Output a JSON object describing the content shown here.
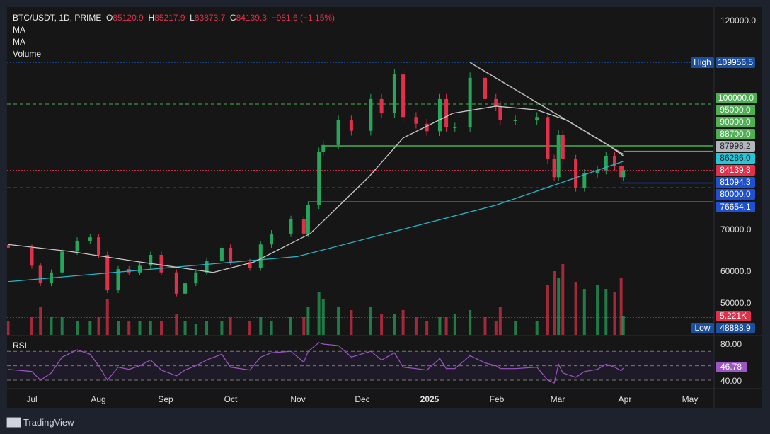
{
  "header": {
    "symbol": "BTC/USDT, 1D, PRIME",
    "o_label": "O",
    "open": "85120.9",
    "h_label": "H",
    "high": "85217.9",
    "l_label": "L",
    "low": "83873.7",
    "c_label": "C",
    "close": "84139.3",
    "change": "−981.6 (−1.15%)",
    "indicators": [
      "MA",
      "MA",
      "Volume"
    ]
  },
  "price_axis": {
    "ticks": [
      "120000.0",
      "70000.0",
      "60000.0",
      "50000.0"
    ],
    "high_label": "High",
    "high_value": "109956.5",
    "low_label": "Low",
    "low_value": "48888.9",
    "tags": [
      {
        "value": "100000.0",
        "color": "#4caf50"
      },
      {
        "value": "95000.0",
        "color": "#4caf50"
      },
      {
        "value": "90000.0",
        "color": "#4caf50"
      },
      {
        "value": "88700.0",
        "color": "#4caf50"
      },
      {
        "value": "87998.2",
        "color": "#b2b5be"
      },
      {
        "value": "86286.0",
        "color": "#26c6da"
      },
      {
        "value": "84139.3",
        "color": "#e0304a"
      },
      {
        "value": "81094.3",
        "color": "#1e50d0"
      },
      {
        "value": "80000.0",
        "color": "#1e50d0"
      },
      {
        "value": "76654.1",
        "color": "#1e50d0"
      }
    ],
    "volume_tag": "5.221K"
  },
  "rsi": {
    "title": "RSI",
    "ticks": [
      "80.00",
      "40.00"
    ],
    "value": "46.78",
    "color": "#9c57c4"
  },
  "time_axis": [
    "Jul",
    "Aug",
    "Sep",
    "Oct",
    "Nov",
    "Dec",
    "2025",
    "Feb",
    "Mar",
    "Apr",
    "May"
  ],
  "footer": {
    "brand": "TradingView",
    "logo": "17"
  },
  "colors": {
    "up": "#26a65b",
    "down": "#e0304a",
    "ma_short": "#c9c9c9",
    "ma_long": "#26b5c8",
    "background": "#161616",
    "frame": "#1e222d"
  },
  "chart_data": {
    "type": "candlestick",
    "symbol": "BTC/USDT",
    "interval": "1D",
    "ylim": [
      48000,
      122000
    ],
    "dates": [
      "2024-06-20",
      "2024-07-01",
      "2024-07-05",
      "2024-07-10",
      "2024-07-15",
      "2024-07-22",
      "2024-07-28",
      "2024-08-01",
      "2024-08-05",
      "2024-08-10",
      "2024-08-15",
      "2024-08-20",
      "2024-08-25",
      "2024-08-30",
      "2024-09-06",
      "2024-09-10",
      "2024-09-15",
      "2024-09-20",
      "2024-09-27",
      "2024-10-01",
      "2024-10-10",
      "2024-10-15",
      "2024-10-20",
      "2024-10-29",
      "2024-11-04",
      "2024-11-06",
      "2024-11-11",
      "2024-11-13",
      "2024-11-20",
      "2024-11-26",
      "2024-12-05",
      "2024-12-10",
      "2024-12-16",
      "2024-12-20",
      "2024-12-26",
      "2024-12-31",
      "2025-01-06",
      "2025-01-09",
      "2025-01-13",
      "2025-01-20",
      "2025-01-27",
      "2025-02-01",
      "2025-02-03",
      "2025-02-10",
      "2025-02-20",
      "2025-02-25",
      "2025-02-28",
      "2025-03-02",
      "2025-03-04",
      "2025-03-10",
      "2025-03-14",
      "2025-03-20",
      "2025-03-24",
      "2025-03-28",
      "2025-03-31",
      "2025-04-01"
    ],
    "close": [
      65600,
      61300,
      57100,
      59700,
      64700,
      67300,
      68100,
      63900,
      55400,
      60500,
      59700,
      61300,
      63900,
      59700,
      54600,
      57100,
      59700,
      62500,
      65600,
      62200,
      60800,
      66400,
      69000,
      72400,
      69000,
      75800,
      88500,
      90200,
      96100,
      93600,
      101200,
      97800,
      107100,
      96900,
      95300,
      93500,
      101200,
      94400,
      94400,
      106300,
      101200,
      99500,
      96100,
      96100,
      96900,
      86800,
      82500,
      92700,
      86800,
      80000,
      83400,
      84200,
      87600,
      85100,
      82500,
      84139.3
    ],
    "volume_k": [
      4,
      5,
      8,
      5,
      5,
      4,
      4,
      5,
      10,
      4,
      4,
      4,
      4,
      4,
      6,
      4,
      3,
      4,
      4,
      5,
      4,
      5,
      4,
      5,
      5,
      8,
      12,
      10,
      8,
      7,
      8,
      6,
      6,
      7,
      5,
      4,
      5,
      5,
      6,
      7,
      5,
      4,
      8,
      4,
      4,
      14,
      18,
      16,
      20,
      15,
      13,
      14,
      13,
      12,
      16,
      5.221
    ],
    "rsi": [
      45,
      42,
      30,
      40,
      62,
      72,
      66,
      50,
      30,
      48,
      45,
      50,
      58,
      44,
      36,
      44,
      50,
      58,
      66,
      48,
      44,
      62,
      68,
      70,
      55,
      70,
      82,
      80,
      78,
      62,
      70,
      58,
      68,
      48,
      46,
      44,
      60,
      46,
      46,
      64,
      54,
      50,
      46,
      46,
      48,
      30,
      26,
      52,
      40,
      34,
      42,
      45,
      52,
      48,
      43,
      46.78
    ],
    "rsi_levels": [
      70,
      50,
      30
    ],
    "ma_short": {
      "dates": [
        "2024-06-20",
        "2024-07-19",
        "2024-08-20",
        "2024-09-23",
        "2024-10-12",
        "2024-11-07",
        "2024-12-04",
        "2024-12-20",
        "2025-01-12",
        "2025-02-01",
        "2025-02-20",
        "2025-03-06",
        "2025-03-25",
        "2025-04-01"
      ],
      "values": [
        66400,
        64700,
        62200,
        59700,
        62200,
        69000,
        82500,
        91900,
        97800,
        99500,
        98600,
        96100,
        90200,
        87600
      ]
    },
    "ma_long": {
      "dates": [
        "2024-06-20",
        "2024-11-01",
        "2025-02-01",
        "2025-04-01"
      ],
      "values": [
        57500,
        63500,
        75800,
        86286
      ]
    },
    "trendline": {
      "from": [
        "2025-01-20",
        109956.5
      ],
      "to": [
        "2025-04-01",
        87998.2
      ]
    },
    "levels": [
      {
        "price": 100000,
        "style": "dashed",
        "color": "#4caf50"
      },
      {
        "price": 95000,
        "style": "dashed",
        "color": "#4caf50"
      },
      {
        "price": 90000,
        "style": "solid",
        "color": "#4caf50",
        "from": "2024-11-13"
      },
      {
        "price": 88700,
        "style": "solid",
        "color": "#4caf50",
        "from": "2025-04-01"
      },
      {
        "price": 84139.3,
        "style": "dotted",
        "color": "#e0304a"
      },
      {
        "price": 81094.3,
        "style": "solid",
        "color": "#1e50d0",
        "from": "2025-03-31"
      },
      {
        "price": 80000,
        "style": "dashed",
        "color": "#1e50d0"
      },
      {
        "price": 76654.1,
        "style": "solid",
        "color": "#1e50d0",
        "from": "2024-11-06"
      },
      {
        "price": 109956.5,
        "style": "dotted",
        "color": "#1b4fa0"
      },
      {
        "price": 48888.9,
        "style": "dotted",
        "color": "#1b4fa0"
      }
    ]
  }
}
